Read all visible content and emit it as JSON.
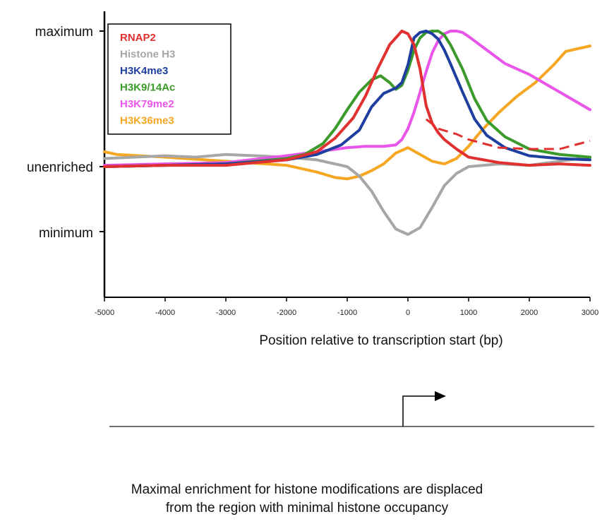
{
  "chart_data": {
    "type": "line",
    "title": "",
    "xlabel": "Position relative to transcription start (bp)",
    "ylabel": "",
    "xlim": [
      -5000,
      3000
    ],
    "x_ticks": [
      "-5000",
      "-4000",
      "-3000",
      "-2000",
      "-1000",
      "0",
      "1000",
      "2000",
      "3000"
    ],
    "ylim": [
      -1.25,
      1.05
    ],
    "y_ticks": [
      {
        "label": "maximum",
        "value": 1
      },
      {
        "label": "unenriched",
        "value": 0
      },
      {
        "label": "minimum",
        "value": -0.5
      }
    ],
    "legend_position": "top-left",
    "series": [
      {
        "name": "RNAP2",
        "color": "#e03030",
        "x": [
          -5000,
          -4000,
          -3000,
          -2000,
          -1500,
          -1200,
          -900,
          -700,
          -500,
          -300,
          -100,
          0,
          100,
          200,
          300,
          400,
          500,
          600,
          800,
          1000,
          1500,
          2000,
          2500,
          3000
        ],
        "y": [
          0.0,
          0.01,
          0.01,
          0.05,
          0.11,
          0.21,
          0.36,
          0.52,
          0.72,
          0.9,
          1.0,
          0.98,
          0.9,
          0.72,
          0.45,
          0.32,
          0.25,
          0.2,
          0.13,
          0.07,
          0.03,
          0.01,
          0.02,
          0.01
        ],
        "dashed_x": [
          300,
          500,
          800,
          1000,
          1500,
          2000,
          2500,
          3000
        ],
        "dashed_y": [
          0.35,
          0.28,
          0.24,
          0.2,
          0.14,
          0.13,
          0.13,
          0.19
        ]
      },
      {
        "name": "Histone H3",
        "color": "#a6a6a6",
        "x": [
          -5000,
          -4500,
          -4000,
          -3500,
          -3000,
          -2500,
          -2000,
          -1500,
          -1000,
          -800,
          -600,
          -400,
          -200,
          0,
          200,
          400,
          600,
          800,
          1000,
          1500,
          2000,
          2500,
          3000
        ],
        "y": [
          0.06,
          0.07,
          0.08,
          0.07,
          0.09,
          0.08,
          0.07,
          0.05,
          0.0,
          -0.07,
          -0.18,
          -0.33,
          -0.46,
          -0.5,
          -0.45,
          -0.3,
          -0.14,
          -0.05,
          0.0,
          0.02,
          0.01,
          0.04,
          0.07
        ]
      },
      {
        "name": "H3K4me3",
        "color": "#1f3fa0",
        "x": [
          -5000,
          -4000,
          -3000,
          -2000,
          -1500,
          -1100,
          -800,
          -600,
          -400,
          -200,
          -100,
          0,
          100,
          200,
          300,
          400,
          500,
          600,
          700,
          900,
          1100,
          1300,
          1600,
          2000,
          2500,
          3000
        ],
        "y": [
          0.0,
          0.01,
          0.02,
          0.05,
          0.09,
          0.16,
          0.27,
          0.44,
          0.54,
          0.58,
          0.62,
          0.75,
          0.95,
          0.99,
          1.0,
          0.98,
          0.94,
          0.86,
          0.76,
          0.55,
          0.35,
          0.23,
          0.14,
          0.08,
          0.06,
          0.05
        ]
      },
      {
        "name": "H3K9/14Ac",
        "color": "#3a9a2a",
        "x": [
          -5000,
          -4000,
          -3000,
          -2000,
          -1700,
          -1400,
          -1200,
          -1000,
          -800,
          -600,
          -450,
          -300,
          -200,
          -100,
          0,
          100,
          200,
          300,
          400,
          500,
          600,
          700,
          900,
          1100,
          1300,
          1600,
          2000,
          2500,
          3000
        ],
        "y": [
          0.0,
          0.01,
          0.02,
          0.06,
          0.09,
          0.17,
          0.28,
          0.42,
          0.55,
          0.64,
          0.67,
          0.62,
          0.57,
          0.6,
          0.71,
          0.86,
          0.95,
          0.99,
          1.0,
          1.0,
          0.97,
          0.9,
          0.72,
          0.5,
          0.34,
          0.22,
          0.13,
          0.09,
          0.07
        ]
      },
      {
        "name": "H3K79me2",
        "color": "#e855e8",
        "x": [
          -5000,
          -4000,
          -3000,
          -2000,
          -1500,
          -1000,
          -700,
          -400,
          -200,
          -100,
          0,
          100,
          200,
          300,
          400,
          500,
          600,
          700,
          800,
          900,
          1000,
          1300,
          1600,
          2000,
          2500,
          3000
        ],
        "y": [
          0.01,
          0.02,
          0.03,
          0.08,
          0.11,
          0.14,
          0.15,
          0.15,
          0.16,
          0.2,
          0.28,
          0.4,
          0.55,
          0.7,
          0.84,
          0.93,
          0.98,
          1.0,
          1.0,
          0.99,
          0.96,
          0.86,
          0.76,
          0.68,
          0.55,
          0.42
        ]
      },
      {
        "name": "H3K36me3",
        "color": "#f5a623",
        "x": [
          -5000,
          -4800,
          -4000,
          -3000,
          -2000,
          -1500,
          -1200,
          -1000,
          -800,
          -600,
          -400,
          -200,
          0,
          200,
          400,
          600,
          800,
          1000,
          1200,
          1500,
          1800,
          2100,
          2400,
          2600,
          2800,
          3000
        ],
        "y": [
          0.11,
          0.09,
          0.07,
          0.04,
          0.01,
          -0.04,
          -0.08,
          -0.09,
          -0.07,
          -0.03,
          0.02,
          0.1,
          0.14,
          0.09,
          0.04,
          0.02,
          0.06,
          0.15,
          0.26,
          0.4,
          0.52,
          0.62,
          0.75,
          0.85,
          0.87,
          0.89
        ]
      }
    ]
  },
  "caption": {
    "line1": "Maximal enrichment for histone modifications are displaced",
    "line2": "from the region with minimal histone occupancy"
  }
}
